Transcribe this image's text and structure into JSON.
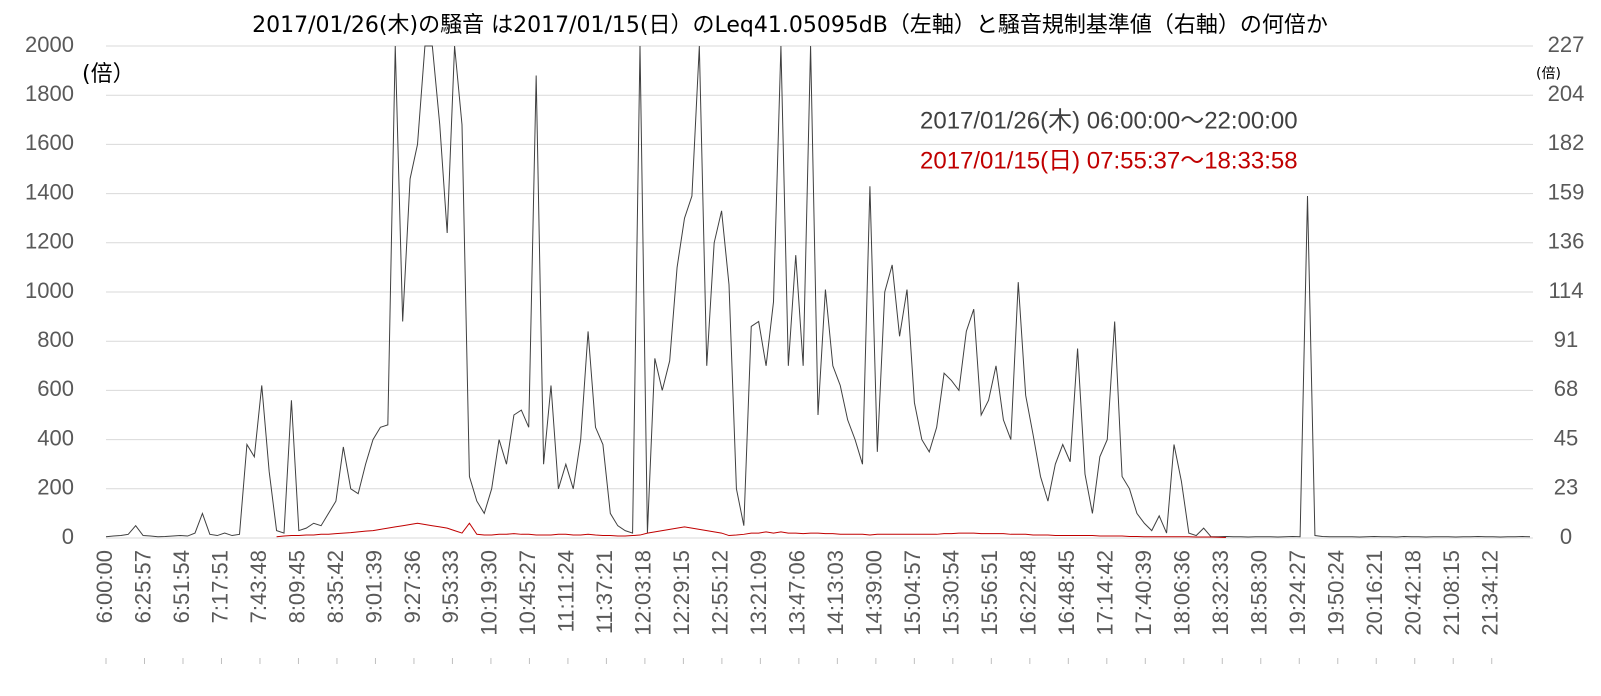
{
  "chart_data": {
    "type": "line",
    "title": "2017/01/26(木)の騒音 は2017/01/15(日）のLeq41.05095dB（左軸）と騒音規制基準値（右軸）の何倍か",
    "ylabel": "(倍）",
    "y2label": "(倍)",
    "xlim": [
      21600,
      79200
    ],
    "xticks": [
      {
        "value": 21600,
        "label": "6:00:00"
      },
      {
        "value": 23157,
        "label": "6:25:57"
      },
      {
        "value": 24714,
        "label": "6:51:54"
      },
      {
        "value": 26271,
        "label": "7:17:51"
      },
      {
        "value": 27828,
        "label": "7:43:48"
      },
      {
        "value": 29385,
        "label": "8:09:45"
      },
      {
        "value": 30942,
        "label": "8:35:42"
      },
      {
        "value": 32499,
        "label": "9:01:39"
      },
      {
        "value": 34056,
        "label": "9:27:36"
      },
      {
        "value": 35613,
        "label": "9:53:33"
      },
      {
        "value": 37170,
        "label": "10:19:30"
      },
      {
        "value": 38727,
        "label": "10:45:27"
      },
      {
        "value": 40284,
        "label": "11:11:24"
      },
      {
        "value": 41841,
        "label": "11:37:21"
      },
      {
        "value": 43398,
        "label": "12:03:18"
      },
      {
        "value": 44955,
        "label": "12:29:15"
      },
      {
        "value": 46512,
        "label": "12:55:12"
      },
      {
        "value": 48069,
        "label": "13:21:09"
      },
      {
        "value": 49626,
        "label": "13:47:06"
      },
      {
        "value": 51183,
        "label": "14:13:03"
      },
      {
        "value": 52740,
        "label": "14:39:00"
      },
      {
        "value": 54297,
        "label": "15:04:57"
      },
      {
        "value": 55854,
        "label": "15:30:54"
      },
      {
        "value": 57411,
        "label": "15:56:51"
      },
      {
        "value": 58968,
        "label": "16:22:48"
      },
      {
        "value": 60525,
        "label": "16:48:45"
      },
      {
        "value": 62082,
        "label": "17:14:42"
      },
      {
        "value": 63639,
        "label": "17:40:39"
      },
      {
        "value": 65196,
        "label": "18:06:36"
      },
      {
        "value": 66753,
        "label": "18:32:33"
      },
      {
        "value": 68310,
        "label": "18:58:30"
      },
      {
        "value": 69867,
        "label": "19:24:27"
      },
      {
        "value": 71424,
        "label": "19:50:24"
      },
      {
        "value": 72981,
        "label": "20:16:21"
      },
      {
        "value": 74538,
        "label": "20:42:18"
      },
      {
        "value": 76095,
        "label": "21:08:15"
      },
      {
        "value": 77652,
        "label": "21:34:12"
      }
    ],
    "ylim": [
      0,
      2000
    ],
    "yticks": [
      0,
      200,
      400,
      600,
      800,
      1000,
      1200,
      1400,
      1600,
      1800,
      2000
    ],
    "y2lim": [
      0,
      227.1
    ],
    "y2ticks": [
      0,
      {
        "value": 22.71,
        "label": "23"
      },
      {
        "value": 45.42,
        "label": "45"
      },
      {
        "value": 68.13,
        "label": "68"
      },
      {
        "value": 90.84,
        "label": "91"
      },
      {
        "value": 113.55,
        "label": "114"
      },
      {
        "value": 136.26,
        "label": "136"
      },
      {
        "value": 158.97,
        "label": "159"
      },
      {
        "value": 181.68,
        "label": "182"
      },
      {
        "value": 204.39,
        "label": "204"
      },
      {
        "value": 227.1,
        "label": "227"
      }
    ],
    "grid": true,
    "x": [
      21600,
      21900,
      22200,
      22500,
      22800,
      23100,
      23400,
      23700,
      24000,
      24300,
      24600,
      24900,
      25200,
      25500,
      25800,
      26100,
      26400,
      26700,
      27000,
      27300,
      27600,
      27900,
      28200,
      28500,
      28800,
      29100,
      29400,
      29700,
      30000,
      30300,
      30600,
      30900,
      31200,
      31500,
      31800,
      32100,
      32400,
      32700,
      33000,
      33300,
      33600,
      33900,
      34200,
      34500,
      34800,
      35100,
      35400,
      35700,
      36000,
      36300,
      36600,
      36900,
      37200,
      37500,
      37800,
      38100,
      38400,
      38700,
      39000,
      39300,
      39600,
      39900,
      40200,
      40500,
      40800,
      41100,
      41400,
      41700,
      42000,
      42300,
      42600,
      42900,
      43200,
      43500,
      43800,
      44100,
      44400,
      44700,
      45000,
      45300,
      45600,
      45900,
      46200,
      46500,
      46800,
      47100,
      47400,
      47700,
      48000,
      48300,
      48600,
      48900,
      49200,
      49500,
      49800,
      50100,
      50400,
      50700,
      51000,
      51300,
      51600,
      51900,
      52200,
      52500,
      52800,
      53100,
      53400,
      53700,
      54000,
      54300,
      54600,
      54900,
      55200,
      55500,
      55800,
      56100,
      56400,
      56700,
      57000,
      57300,
      57600,
      57900,
      58200,
      58500,
      58800,
      59100,
      59400,
      59700,
      60000,
      60300,
      60600,
      60900,
      61200,
      61500,
      61800,
      62100,
      62400,
      62700,
      63000,
      63300,
      63600,
      63900,
      64200,
      64500,
      64800,
      65100,
      65400,
      65700,
      66000,
      66300,
      66600,
      66900,
      67200,
      67500,
      67800,
      68100,
      68400,
      68700,
      69000,
      69300,
      69600,
      69900,
      70200,
      70500,
      70800,
      71100,
      71400,
      71700,
      72000,
      72300,
      72600,
      72900,
      73200,
      73500,
      73800,
      74100,
      74400,
      74700,
      75000,
      75300,
      75600,
      75900,
      76200,
      76500,
      76800,
      77100,
      77400,
      77700,
      78000,
      78300,
      78600,
      78900,
      79200
    ],
    "series": [
      {
        "name": "2017/01/26(木) 06:00:00〜22:00:00",
        "color": "#404040",
        "values": [
          5,
          8,
          10,
          15,
          50,
          10,
          8,
          5,
          6,
          8,
          10,
          8,
          20,
          100,
          15,
          10,
          20,
          10,
          15,
          380,
          330,
          620,
          270,
          30,
          20,
          560,
          30,
          40,
          60,
          50,
          100,
          150,
          370,
          200,
          180,
          300,
          400,
          450,
          460,
          2000,
          880,
          1460,
          1600,
          2000,
          2000,
          1680,
          1240,
          2000,
          1680,
          250,
          150,
          100,
          200,
          400,
          300,
          500,
          520,
          450,
          1880,
          300,
          620,
          200,
          300,
          200,
          400,
          840,
          450,
          380,
          100,
          50,
          30,
          20,
          2000,
          20,
          730,
          600,
          720,
          1100,
          1300,
          1390,
          2000,
          700,
          1200,
          1330,
          1030,
          200,
          50,
          860,
          880,
          700,
          960,
          2000,
          700,
          1150,
          700,
          2000,
          500,
          1010,
          700,
          620,
          480,
          400,
          300,
          1430,
          350,
          1000,
          1110,
          820,
          1010,
          550,
          400,
          350,
          450,
          670,
          640,
          600,
          840,
          930,
          500,
          560,
          700,
          480,
          400,
          1040,
          580,
          420,
          250,
          150,
          300,
          380,
          310,
          770,
          260,
          100,
          330,
          400,
          880,
          250,
          200,
          100,
          60,
          30,
          90,
          20,
          380,
          230,
          20,
          10,
          40,
          5,
          5,
          6,
          5,
          5,
          4,
          5,
          5,
          5,
          4,
          5,
          6,
          5,
          1390,
          10,
          6,
          5,
          5,
          5,
          5,
          4,
          5,
          6,
          5,
          5,
          4,
          6,
          5,
          5,
          4,
          5,
          5,
          5,
          4,
          5,
          5,
          6,
          5,
          5,
          4,
          5,
          5,
          6,
          5
        ]
      },
      {
        "name": "2017/01/15(日) 07:55:37〜18:33:58",
        "color": "#c00000",
        "values": [
          null,
          null,
          null,
          null,
          null,
          null,
          null,
          null,
          null,
          null,
          null,
          null,
          null,
          null,
          null,
          null,
          null,
          null,
          null,
          null,
          null,
          null,
          null,
          5,
          8,
          10,
          10,
          12,
          12,
          15,
          15,
          18,
          20,
          22,
          25,
          28,
          30,
          35,
          40,
          45,
          50,
          55,
          60,
          55,
          50,
          45,
          40,
          30,
          20,
          60,
          15,
          12,
          12,
          15,
          15,
          18,
          15,
          15,
          12,
          12,
          12,
          15,
          15,
          12,
          12,
          15,
          12,
          10,
          10,
          8,
          8,
          10,
          12,
          20,
          25,
          30,
          35,
          40,
          45,
          40,
          35,
          30,
          25,
          20,
          10,
          12,
          15,
          20,
          20,
          25,
          20,
          25,
          20,
          20,
          18,
          20,
          20,
          18,
          18,
          15,
          15,
          15,
          15,
          12,
          15,
          15,
          15,
          15,
          15,
          15,
          15,
          15,
          15,
          18,
          18,
          20,
          20,
          20,
          18,
          18,
          18,
          18,
          15,
          15,
          15,
          12,
          12,
          12,
          10,
          10,
          10,
          10,
          10,
          10,
          8,
          8,
          8,
          8,
          6,
          6,
          5,
          5,
          5,
          5,
          5,
          5,
          5,
          4,
          4,
          4,
          3,
          2,
          null,
          null,
          null,
          null,
          null,
          null,
          null,
          null,
          null,
          null,
          null,
          null,
          null,
          null,
          null,
          null,
          null,
          null,
          null,
          null,
          null,
          null,
          null,
          null,
          null,
          null,
          null,
          null,
          null,
          null,
          null,
          null,
          null,
          null,
          null,
          null,
          null,
          null,
          null,
          null,
          null
        ]
      }
    ]
  }
}
